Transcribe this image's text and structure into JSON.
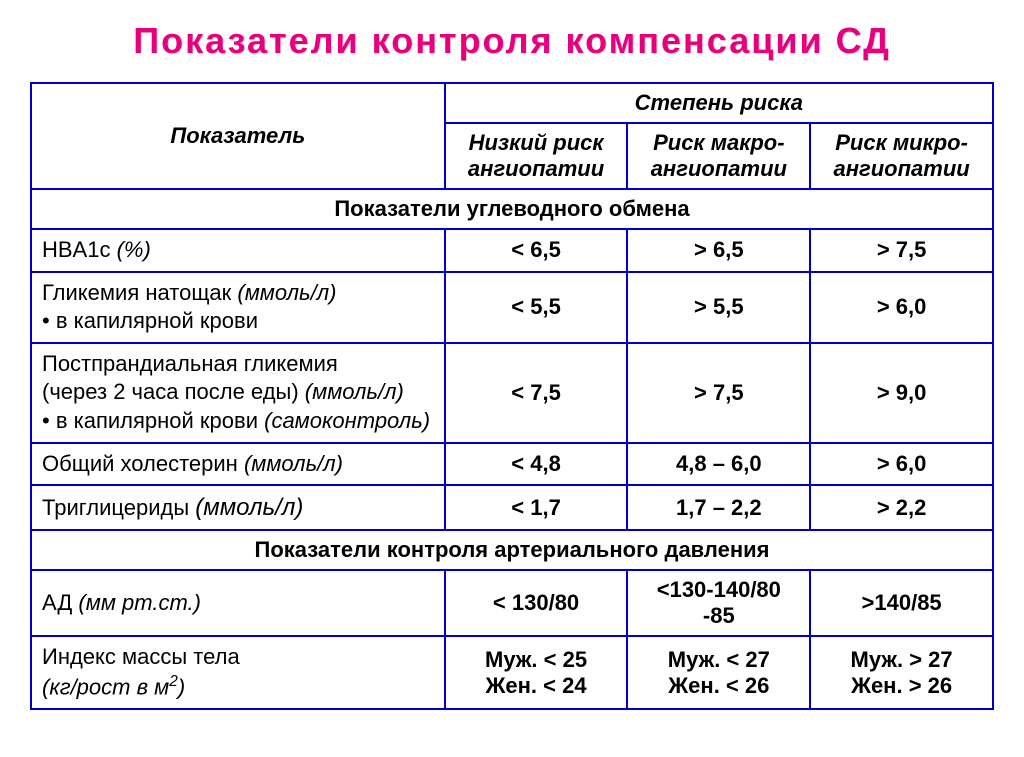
{
  "title": "Показатели  контроля  компенсации  СД",
  "colors": {
    "title_color": "#e6007e",
    "border_color": "#0000c8",
    "text_color": "#000000",
    "background": "#ffffff"
  },
  "table": {
    "header": {
      "indicator": "Показатель",
      "risk_group": "Степень риска",
      "risk_low": "Низкий риск ангиопатии",
      "risk_macro": "Риск макро-ангиопатии",
      "risk_micro": "Риск микро-ангиопатии"
    },
    "section1": "Показатели углеводного обмена",
    "rows1": [
      {
        "label_plain": "HBA1c ",
        "label_italic": "(%)",
        "low": "< 6,5",
        "macro": "> 6,5",
        "micro": "> 7,5"
      },
      {
        "label_line1_plain": "Гликемия натощак ",
        "label_line1_italic": "(ммоль/л)",
        "label_line2_plain": "•  в капилярной крови",
        "low": "< 5,5",
        "macro": "> 5,5",
        "micro": "> 6,0"
      },
      {
        "label_line1_plain": "Постпрандиальная гликемия",
        "label_line2_plain": "(через 2 часа после еды) ",
        "label_line2_italic": "(ммоль/л)",
        "label_line3_plain": "•  в капилярной крови ",
        "label_line3_italic": "(самоконтроль)",
        "low": "< 7,5",
        "macro": "> 7,5",
        "micro": "> 9,0"
      },
      {
        "label_plain": "Общий холестерин ",
        "label_italic": "(ммоль/л)",
        "low": "< 4,8",
        "macro": "4,8 – 6,0",
        "micro": "> 6,0"
      },
      {
        "label_plain": "Триглицериды ",
        "label_italic": "(ммоль/л)",
        "low": "< 1,7",
        "macro": "1,7 – 2,2",
        "micro": "> 2,2"
      }
    ],
    "section2": "Показатели контроля артериального давления",
    "rows2": [
      {
        "label_plain": "АД ",
        "label_italic": "(мм рт.ст.)",
        "low": "< 130/80",
        "macro": "<130-140/80 -85",
        "micro": ">140/85"
      },
      {
        "label_line1_plain": "Индекс массы тела",
        "label_line2_italic_pre": " (кг/рост в м",
        "label_line2_sup": "2",
        "label_line2_italic_post": ")",
        "low_l1": "Муж. < 25",
        "low_l2": "Жен. < 24",
        "macro_l1": "Муж. < 27",
        "macro_l2": "Жен. < 26",
        "micro_l1": "Муж. > 27",
        "micro_l2": "Жен. > 26"
      }
    ]
  }
}
